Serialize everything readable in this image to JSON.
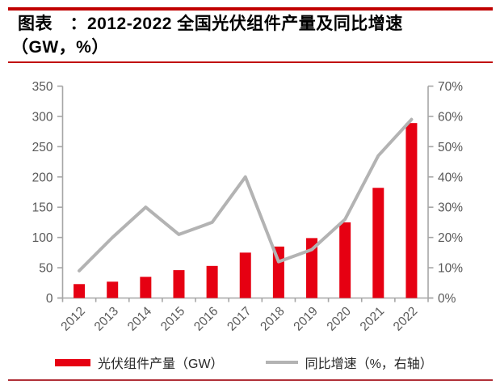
{
  "header": {
    "title_line1": "图表　：2012-2022 全国光伏组件产量及同比增速",
    "title_line2": "（GW，%）"
  },
  "colors": {
    "rule_red": "#c00000",
    "rule_bottom_red": "#b03038",
    "bar_red": "#e60012",
    "line_gray": "#b3b3b3",
    "axis_gray": "#a6a6a6",
    "tick_label_gray": "#595959",
    "legend_text": "#262626"
  },
  "chart_data": {
    "type": "bar",
    "subtype": "bar+line combo, dual axis",
    "title": "2012-2022 全国光伏组件产量及同比增速（GW，%）",
    "categories": [
      "2012",
      "2013",
      "2014",
      "2015",
      "2016",
      "2017",
      "2018",
      "2019",
      "2020",
      "2021",
      "2022"
    ],
    "series": [
      {
        "name": "光伏组件产量（GW）",
        "type": "bar",
        "axis": "left",
        "color": "#e60012",
        "values": [
          23,
          27,
          35,
          46,
          53,
          75,
          85,
          99,
          125,
          182,
          289
        ]
      },
      {
        "name": "同比增速（%，右轴）",
        "type": "line",
        "axis": "right",
        "color": "#b3b3b3",
        "values": [
          9,
          20,
          30,
          21,
          25,
          40,
          12,
          16,
          26,
          47,
          59
        ]
      }
    ],
    "left_axis": {
      "label": "GW",
      "min": 0,
      "max": 350,
      "step": 50,
      "ticks": [
        "0",
        "50",
        "100",
        "150",
        "200",
        "250",
        "300",
        "350"
      ]
    },
    "right_axis": {
      "label": "%",
      "min": 0,
      "max": 70,
      "step": 10,
      "ticks": [
        "0%",
        "10%",
        "20%",
        "30%",
        "40%",
        "50%",
        "60%",
        "70%"
      ]
    },
    "grid": false,
    "legend_position": "bottom",
    "x_tick_label_rotation_deg": -45
  }
}
